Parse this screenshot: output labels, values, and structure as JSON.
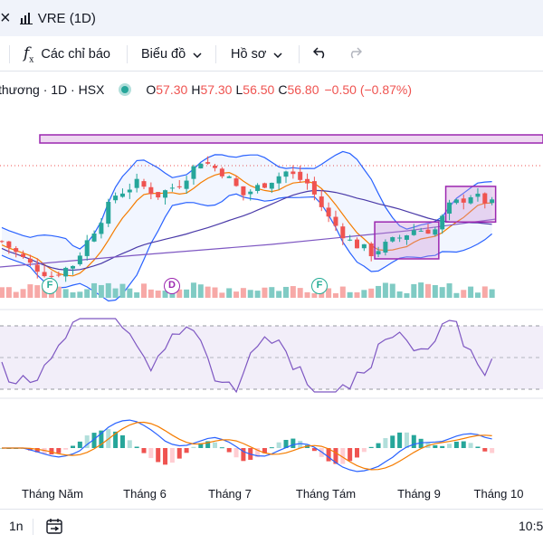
{
  "tab": {
    "close_glyph": "×",
    "title": "VRE (1D)",
    "icon": "chart-icon"
  },
  "toolbar": {
    "indicators_label": "Các chỉ báo",
    "chart_type_label": "Biểu đồ",
    "profile_label": "Hồ sơ",
    "undo_icon": "undo-icon",
    "redo_icon": "redo-icon"
  },
  "legend": {
    "symbol": "thương · 1D · HSX",
    "o_label": "O",
    "o_value": "57.30",
    "h_label": "H",
    "h_value": "57.30",
    "l_label": "L",
    "l_value": "56.50",
    "c_label": "C",
    "c_value": "56.80",
    "change": "−0.50 (−0.87%)"
  },
  "events": [
    {
      "letter": "F",
      "color": "#22ab94"
    },
    {
      "letter": "D",
      "color": "#9c27b0"
    },
    {
      "letter": "F",
      "color": "#22ab94"
    }
  ],
  "x_axis": {
    "labels": [
      "Tháng Năm",
      "Tháng 6",
      "Tháng 7",
      "Tháng Tám",
      "Tháng 9",
      "Tháng 10"
    ]
  },
  "bottom": {
    "interval": "1n",
    "calendar_icon": "calendar-range-icon",
    "time": "10:5"
  },
  "colors": {
    "up": "#26a69a",
    "down": "#ef5350",
    "bb": "#2962ff",
    "ma_fast": "#f57c00",
    "ma_slow": "#7e57c2",
    "zone": "#9c27b0",
    "rsi": "#7e57c2"
  },
  "chart_data": {
    "type": "candlestick",
    "series_count": 70,
    "base_price_range": [
      51.0,
      63.5
    ],
    "zones": [
      {
        "kind": "resistance",
        "from_index": 0,
        "to_index": 69
      },
      {
        "kind": "consolidation",
        "from_index": 53,
        "to_index": 61
      },
      {
        "kind": "consolidation",
        "from_index": 63,
        "to_index": 69
      }
    ],
    "last_close": 56.8
  }
}
